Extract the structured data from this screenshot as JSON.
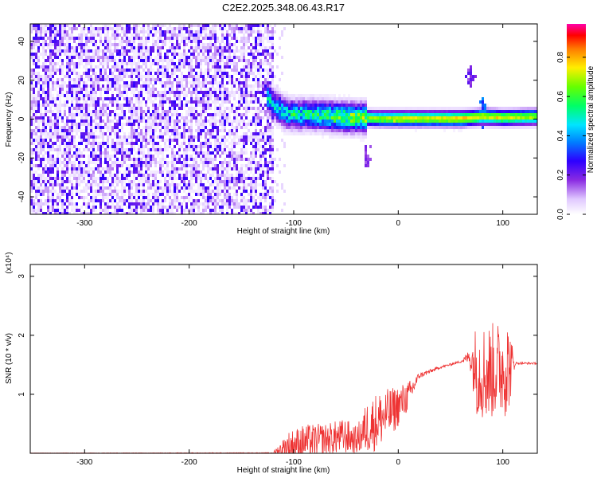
{
  "title": "C2E2.2025.348.06.43.R17",
  "chart_data": [
    {
      "type": "heatmap",
      "xlabel": "Height of straight line (km)",
      "ylabel": "Frequency (Hz)",
      "xlim": [
        -352,
        133
      ],
      "ylim": [
        -49,
        49
      ],
      "xticks": [
        -300,
        -200,
        -100,
        0,
        100
      ],
      "yticks": [
        -40,
        -20,
        0,
        20,
        40
      ],
      "colorbar": {
        "label": "Normalized spectral amplitude",
        "range": [
          0,
          0.97
        ],
        "ticks": [
          "0.0",
          "0.2",
          "0.4",
          "0.6",
          "0.8"
        ]
      },
      "noise_region": {
        "x": [
          -352,
          -120
        ],
        "y": [
          -49,
          49
        ],
        "level": 0.2
      },
      "ridge": [
        {
          "x": -128,
          "f": 13,
          "amp": 0.45
        },
        {
          "x": -120,
          "f": 8,
          "amp": 0.45
        },
        {
          "x": -110,
          "f": 4,
          "amp": 0.5
        },
        {
          "x": -100,
          "f": 3,
          "amp": 0.5
        },
        {
          "x": -80,
          "f": 3,
          "amp": 0.55
        },
        {
          "x": -60,
          "f": 2,
          "amp": 0.6
        },
        {
          "x": -40,
          "f": 1.5,
          "amp": 0.65
        },
        {
          "x": -20,
          "f": 1,
          "amp": 0.7
        },
        {
          "x": 0,
          "f": 1,
          "amp": 0.75
        },
        {
          "x": 20,
          "f": 1,
          "amp": 0.75
        },
        {
          "x": 40,
          "f": 1,
          "amp": 0.75
        },
        {
          "x": 60,
          "f": 1,
          "amp": 0.8
        },
        {
          "x": 80,
          "f": 2,
          "amp": 0.75
        },
        {
          "x": 100,
          "f": 1.5,
          "amp": 0.75
        },
        {
          "x": 133,
          "f": 2,
          "amp": 0.7
        }
      ],
      "hotspots": [
        {
          "x": -5,
          "f": 0.5,
          "amp": 0.92
        },
        {
          "x": 63,
          "f": 1,
          "amp": 0.92
        },
        {
          "x": 93,
          "f": 1,
          "amp": 0.9
        }
      ],
      "features": [
        {
          "x": 68,
          "f": 22,
          "amp": 0.15
        },
        {
          "x": 80,
          "f": 6,
          "amp": 0.3
        },
        {
          "x": -30,
          "f": -20,
          "amp": 0.12
        }
      ]
    },
    {
      "type": "line",
      "xlabel": "Height of straight line (km)",
      "ylabel": "SNR (10 * v/v)",
      "y_multiplier": "(x10⁴)",
      "xlim": [
        -352,
        133
      ],
      "ylim": [
        0,
        3.2
      ],
      "xticks": [
        -300,
        -200,
        -100,
        0,
        100
      ],
      "yticks": [
        1,
        2,
        3
      ],
      "series": [
        {
          "color": "#ee3333",
          "envelope": [
            {
              "x": -352,
              "base": 0.0,
              "amp": 0.01
            },
            {
              "x": -120,
              "base": 0.0,
              "amp": 0.02
            },
            {
              "x": -105,
              "base": 0.05,
              "amp": 0.5
            },
            {
              "x": -90,
              "base": 0.1,
              "amp": 0.6
            },
            {
              "x": -70,
              "base": 0.15,
              "amp": 0.55
            },
            {
              "x": -50,
              "base": 0.2,
              "amp": 0.6
            },
            {
              "x": -40,
              "base": 0.15,
              "amp": 0.45
            },
            {
              "x": -30,
              "base": 0.3,
              "amp": 0.9
            },
            {
              "x": -20,
              "base": 0.4,
              "amp": 1.0
            },
            {
              "x": -5,
              "base": 0.6,
              "amp": 0.8
            },
            {
              "x": 10,
              "base": 0.9,
              "amp": 0.5
            },
            {
              "x": 20,
              "base": 1.3,
              "amp": 0.1
            },
            {
              "x": 40,
              "base": 1.45,
              "amp": 0.04
            },
            {
              "x": 60,
              "base": 1.55,
              "amp": 0.04
            },
            {
              "x": 68,
              "base": 1.6,
              "amp": 0.25
            },
            {
              "x": 75,
              "base": 1.2,
              "amp": 1.6
            },
            {
              "x": 85,
              "base": 1.1,
              "amp": 1.7
            },
            {
              "x": 95,
              "base": 1.2,
              "amp": 1.6
            },
            {
              "x": 105,
              "base": 1.2,
              "amp": 1.7
            },
            {
              "x": 112,
              "base": 1.52,
              "amp": 0.04
            },
            {
              "x": 133,
              "base": 1.52,
              "amp": 0.03
            }
          ]
        }
      ]
    }
  ]
}
